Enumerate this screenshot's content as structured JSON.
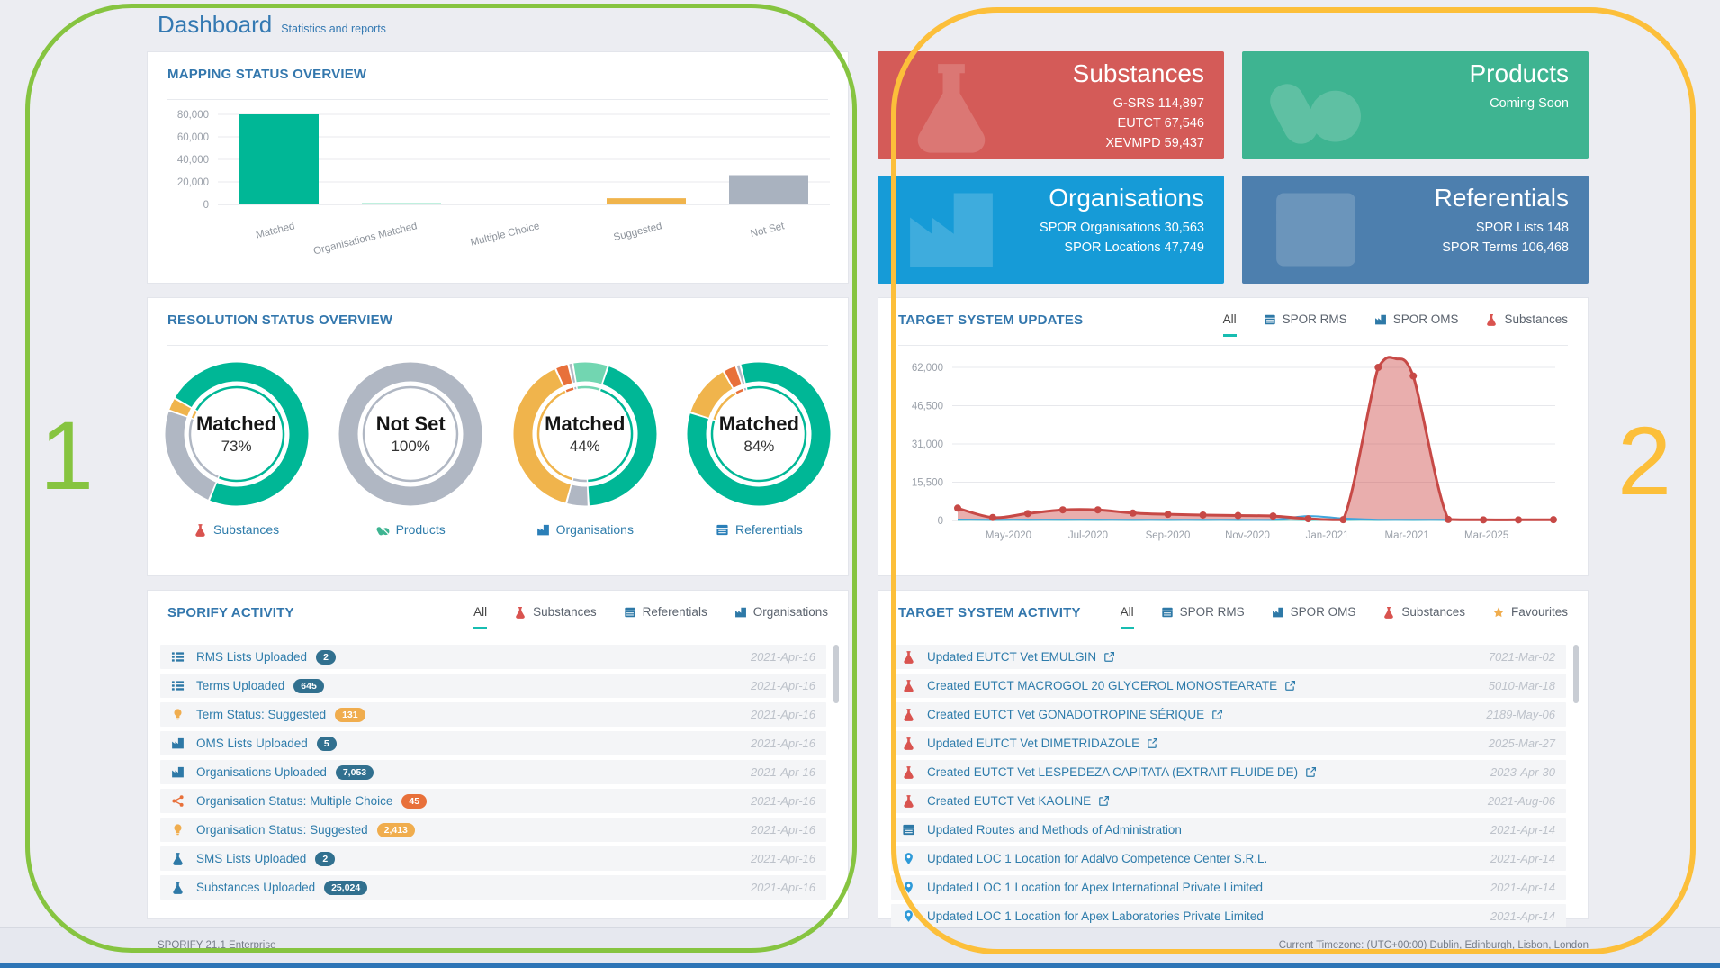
{
  "annotations": {
    "region1_label": "1",
    "region1_color": "#86c440",
    "region2_label": "2",
    "region2_color": "#fcbf3a"
  },
  "header": {
    "title": "Dashboard",
    "subtitle": "Statistics and reports"
  },
  "cards": [
    {
      "title": "Substances",
      "lines": [
        "G-SRS 114,897",
        "EUTCT 67,546",
        "XEVMPD 59,437"
      ],
      "color": "#d45b58",
      "icon": "flask-icon"
    },
    {
      "title": "Products",
      "lines": [
        "Coming Soon"
      ],
      "color": "#3eb491",
      "icon": "pills-icon"
    },
    {
      "title": "Organisations",
      "lines": [
        "SPOR Organisations 30,563",
        "SPOR Locations 47,749"
      ],
      "color": "#169bd7",
      "icon": "factory-icon"
    },
    {
      "title": "Referentials",
      "lines": [
        "SPOR Lists 148",
        "SPOR Terms 106,468"
      ],
      "color": "#4d7fae",
      "icon": "table-icon"
    }
  ],
  "sporify_activity": {
    "title": "SPORIFY ACTIVITY",
    "tabs": [
      {
        "label": "All",
        "active": true
      },
      {
        "label": "Substances",
        "icon": "flask-icon",
        "icon_color": "#d9534f"
      },
      {
        "label": "Referentials",
        "icon": "table-icon",
        "icon_color": "#2e79a7"
      },
      {
        "label": "Organisations",
        "icon": "factory-icon",
        "icon_color": "#2e79a7"
      }
    ],
    "rows": [
      {
        "icon": "list-icon",
        "icon_color": "#2e79a7",
        "label": "RMS Lists Uploaded",
        "badge": "2",
        "badge_color": "#31708f",
        "date": "2021-Apr-16"
      },
      {
        "icon": "list-icon",
        "icon_color": "#2e79a7",
        "label": "Terms Uploaded",
        "badge": "645",
        "badge_color": "#31708f",
        "date": "2021-Apr-16"
      },
      {
        "icon": "bulb-icon",
        "icon_color": "#f0ad4e",
        "label": "Term Status: Suggested",
        "badge": "131",
        "badge_color": "#f0ad4e",
        "date": "2021-Apr-16"
      },
      {
        "icon": "factory-icon",
        "icon_color": "#2e79a7",
        "label": "OMS Lists Uploaded",
        "badge": "5",
        "badge_color": "#31708f",
        "date": "2021-Apr-16"
      },
      {
        "icon": "factory-icon",
        "icon_color": "#2e79a7",
        "label": "Organisations Uploaded",
        "badge": "7,053",
        "badge_color": "#31708f",
        "date": "2021-Apr-16"
      },
      {
        "icon": "share-icon",
        "icon_color": "#e8703a",
        "label": "Organisation Status: Multiple Choice",
        "badge": "45",
        "badge_color": "#e8703a",
        "date": "2021-Apr-16"
      },
      {
        "icon": "bulb-icon",
        "icon_color": "#f0ad4e",
        "label": "Organisation Status: Suggested",
        "badge": "2,413",
        "badge_color": "#f0ad4e",
        "date": "2021-Apr-16"
      },
      {
        "icon": "flask-icon",
        "icon_color": "#2e79a7",
        "label": "SMS Lists Uploaded",
        "badge": "2",
        "badge_color": "#31708f",
        "date": "2021-Apr-16"
      },
      {
        "icon": "flask-icon",
        "icon_color": "#2e79a7",
        "label": "Substances Uploaded",
        "badge": "25,024",
        "badge_color": "#31708f",
        "date": "2021-Apr-16"
      }
    ]
  },
  "target_updates_panel": {
    "tabs": [
      {
        "label": "All",
        "active": true
      },
      {
        "label": "SPOR RMS",
        "icon": "table-icon",
        "icon_color": "#2e79a7"
      },
      {
        "label": "SPOR OMS",
        "icon": "factory-icon",
        "icon_color": "#2e79a7"
      },
      {
        "label": "Substances",
        "icon": "flask-icon",
        "icon_color": "#d9534f"
      }
    ]
  },
  "target_activity": {
    "title": "TARGET SYSTEM ACTIVITY",
    "tabs": [
      {
        "label": "All",
        "active": true
      },
      {
        "label": "SPOR RMS",
        "icon": "table-icon",
        "icon_color": "#2e79a7"
      },
      {
        "label": "SPOR OMS",
        "icon": "factory-icon",
        "icon_color": "#2e79a7"
      },
      {
        "label": "Substances",
        "icon": "flask-icon",
        "icon_color": "#d9534f"
      },
      {
        "label": "Favourites",
        "icon": "star-icon",
        "icon_color": "#f0ad4e"
      }
    ],
    "rows": [
      {
        "icon": "flask-icon",
        "icon_color": "#d9534f",
        "label": "Updated EUTCT Vet EMULGIN",
        "external_link": true,
        "date": "7021-Mar-02"
      },
      {
        "icon": "flask-icon",
        "icon_color": "#d9534f",
        "label": "Created EUTCT MACROGOL 20 GLYCEROL MONOSTEARATE",
        "external_link": true,
        "date": "5010-Mar-18"
      },
      {
        "icon": "flask-icon",
        "icon_color": "#d9534f",
        "label": "Created EUTCT Vet GONADOTROPINE SÉRIQUE",
        "external_link": true,
        "date": "2189-May-06"
      },
      {
        "icon": "flask-icon",
        "icon_color": "#d9534f",
        "label": "Updated EUTCT Vet DIMÉTRIDAZOLE",
        "external_link": true,
        "date": "2025-Mar-27"
      },
      {
        "icon": "flask-icon",
        "icon_color": "#d9534f",
        "label": "Created EUTCT Vet LESPEDEZA CAPITATA (EXTRAIT FLUIDE DE)",
        "external_link": true,
        "date": "2023-Apr-30"
      },
      {
        "icon": "flask-icon",
        "icon_color": "#d9534f",
        "label": "Created EUTCT Vet KAOLINE",
        "external_link": true,
        "date": "2021-Aug-06"
      },
      {
        "icon": "table-icon",
        "icon_color": "#2e79a7",
        "label": "Updated Routes and Methods of Administration",
        "external_link": false,
        "date": "2021-Apr-14"
      },
      {
        "icon": "pin-icon",
        "icon_color": "#2e9ad8",
        "label": "Updated LOC 1 Location for Adalvo Competence Center S.R.L.",
        "external_link": false,
        "date": "2021-Apr-14"
      },
      {
        "icon": "pin-icon",
        "icon_color": "#2e9ad8",
        "label": "Updated LOC 1 Location for Apex International Private Limited",
        "external_link": false,
        "date": "2021-Apr-14"
      },
      {
        "icon": "pin-icon",
        "icon_color": "#2e9ad8",
        "label": "Updated LOC 1 Location for Apex Laboratories Private Limited",
        "external_link": false,
        "date": "2021-Apr-14",
        "partially_visible": true
      }
    ]
  },
  "footer": {
    "left": "SPORIFY 21.1 Enterprise",
    "right": "Current Timezone: (UTC+00:00) Dublin, Edinburgh, Lisbon, London"
  },
  "chart_data": [
    {
      "id": "mapping_status",
      "type": "bar",
      "title": "MAPPING STATUS OVERVIEW",
      "categories": [
        "Matched",
        "Organisations Matched",
        "Multiple Choice",
        "Suggested",
        "Not Set"
      ],
      "values": [
        80000,
        1200,
        250,
        5500,
        26000
      ],
      "colors": [
        "#00b796",
        "#7fe0bd",
        "#e8703a",
        "#f0b44c",
        "#a9b2bf"
      ],
      "ylim": [
        0,
        80000
      ],
      "yticks": [
        "0",
        "20,000",
        "40,000",
        "60,000",
        "80,000"
      ],
      "grid": true
    },
    {
      "id": "resolution_status",
      "type": "pie",
      "title": "RESOLUTION STATUS OVERVIEW",
      "donuts": [
        {
          "center_label": "Matched",
          "center_value": "73%",
          "start_angle": 300,
          "segments": [
            {
              "color": "#00b796",
              "pct": 73
            },
            {
              "color": "#b0b7c3",
              "pct": 24
            },
            {
              "color": "#f0b44c",
              "pct": 3
            }
          ],
          "footer_label": "Substances",
          "footer_icon": "flask-icon",
          "footer_icon_color": "#d9534f"
        },
        {
          "center_label": "Not Set",
          "center_value": "100%",
          "start_angle": 0,
          "segments": [
            {
              "color": "#b0b7c3",
              "pct": 100
            }
          ],
          "footer_label": "Products",
          "footer_icon": "pills-icon",
          "footer_icon_color": "#3eb491"
        },
        {
          "center_label": "Matched",
          "center_value": "44%",
          "start_angle": 350,
          "segments": [
            {
              "color": "#72d6b1",
              "pct": 8
            },
            {
              "color": "#00b796",
              "pct": 44
            },
            {
              "color": "#b0b7c3",
              "pct": 5
            },
            {
              "color": "#f0b44c",
              "pct": 39
            },
            {
              "color": "#e8703a",
              "pct": 3
            },
            {
              "color": "#b0b7c3",
              "pct": 1
            }
          ],
          "footer_label": "Organisations",
          "footer_icon": "factory-icon",
          "footer_icon_color": "#2b7fb8"
        },
        {
          "center_label": "Matched",
          "center_value": "84%",
          "start_angle": 345,
          "segments": [
            {
              "color": "#00b796",
              "pct": 84
            },
            {
              "color": "#f0b44c",
              "pct": 12
            },
            {
              "color": "#e8703a",
              "pct": 3
            },
            {
              "color": "#b0b7c3",
              "pct": 1
            }
          ],
          "footer_label": "Referentials",
          "footer_icon": "table-icon",
          "footer_icon_color": "#2b7fb8"
        }
      ]
    },
    {
      "id": "target_system_updates",
      "type": "area",
      "title": "TARGET SYSTEM UPDATES",
      "ylim": [
        0,
        62000
      ],
      "yticks": [
        "0",
        "15,500",
        "31,000",
        "46,500",
        "62,000"
      ],
      "xticks": [
        "May-2020",
        "Jul-2020",
        "Sep-2020",
        "Nov-2020",
        "Jan-2021",
        "Mar-2021",
        "Mar-2025"
      ],
      "series": [
        {
          "name": "Substances",
          "color": "#c74946",
          "fill": "rgba(206,76,73,0.45)",
          "dots": true,
          "values": [
            5000,
            1200,
            2800,
            4300,
            4300,
            3000,
            2500,
            2200,
            2000,
            1800,
            700,
            300,
            62000,
            58500,
            400,
            250,
            250,
            300
          ],
          "apex": {
            "after_index": 12,
            "value": 65500
          }
        },
        {
          "name": "SPOR OMS",
          "color": "#3ea6dd",
          "dots": false,
          "values": [
            350,
            300,
            320,
            340,
            330,
            300,
            290,
            280,
            270,
            260,
            1800,
            800,
            300,
            280,
            260,
            250,
            240,
            230
          ]
        },
        {
          "name": "SPOR RMS",
          "color": "#2cc0b5",
          "dots": false,
          "values": [
            130,
            125,
            130,
            135,
            130,
            125,
            120,
            120,
            115,
            115,
            110,
            110,
            105,
            105,
            100,
            100,
            95,
            95
          ]
        }
      ]
    }
  ]
}
